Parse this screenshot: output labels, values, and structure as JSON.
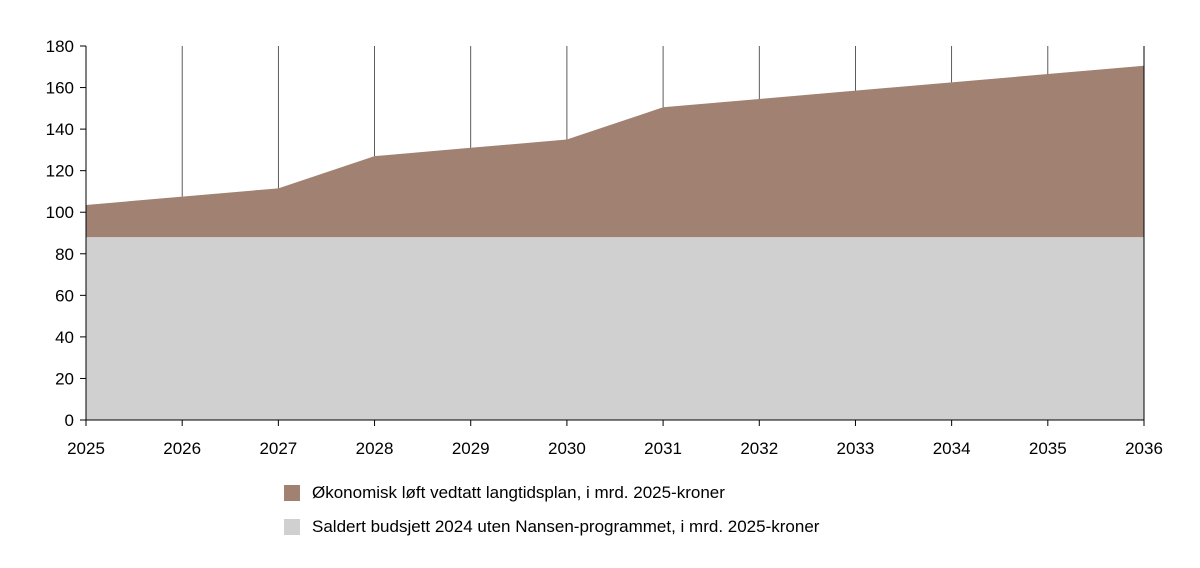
{
  "chart_data": {
    "type": "area",
    "stacked": true,
    "title": "",
    "xlabel": "",
    "ylabel": "",
    "x": [
      2025,
      2026,
      2027,
      2028,
      2029,
      2030,
      2031,
      2032,
      2033,
      2034,
      2035,
      2036
    ],
    "ylim": [
      0,
      180
    ],
    "yticks": [
      0,
      20,
      40,
      60,
      80,
      100,
      120,
      140,
      160,
      180
    ],
    "series": [
      {
        "name": "Saldert budsjett 2024 uten Nansen-programmet, i mrd. 2025-kroner",
        "color": "#d0d0d0",
        "values": [
          88,
          88,
          88,
          88,
          88,
          88,
          88,
          88,
          88,
          88,
          88,
          88
        ]
      },
      {
        "name": "Økonomisk løft vedtatt langtidsplan, i mrd. 2025-kroner",
        "color": "#a08172",
        "totals": [
          103.5,
          107.5,
          111.5,
          127,
          131,
          135,
          150.5,
          154.5,
          158.5,
          162.5,
          166.5,
          170.5
        ]
      }
    ],
    "legend_position": "bottom"
  },
  "legend": {
    "items": [
      {
        "label": "Økonomisk løft vedtatt langtidsplan, i mrd. 2025-kroner",
        "color": "#a08172"
      },
      {
        "label": "Saldert budsjett 2024 uten Nansen-programmet, i mrd. 2025-kroner",
        "color": "#d0d0d0"
      }
    ]
  }
}
